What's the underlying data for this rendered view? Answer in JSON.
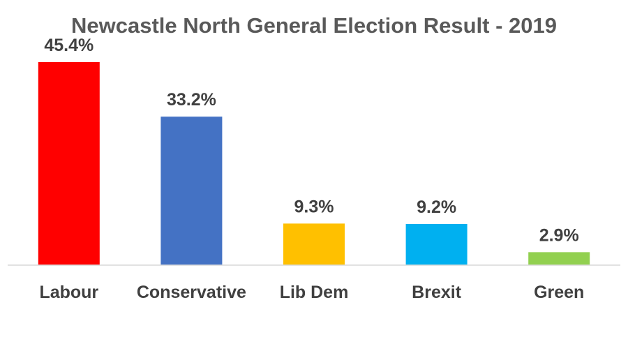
{
  "chart_data": {
    "type": "bar",
    "title": "Newcastle North General Election Result - 2019",
    "xlabel": "",
    "ylabel": "",
    "categories": [
      "Labour",
      "Conservative",
      "Lib Dem",
      "Brexit",
      "Green"
    ],
    "values": [
      45.4,
      33.2,
      9.3,
      9.2,
      2.9
    ],
    "value_labels": [
      "45.4%",
      "33.2%",
      "9.3%",
      "9.2%",
      "2.9%"
    ],
    "colors": [
      "#FF0000",
      "#4472C4",
      "#FFC000",
      "#00B0F0",
      "#92D050"
    ],
    "ylim": [
      0,
      45.4
    ],
    "grid": false,
    "legend": "none"
  }
}
